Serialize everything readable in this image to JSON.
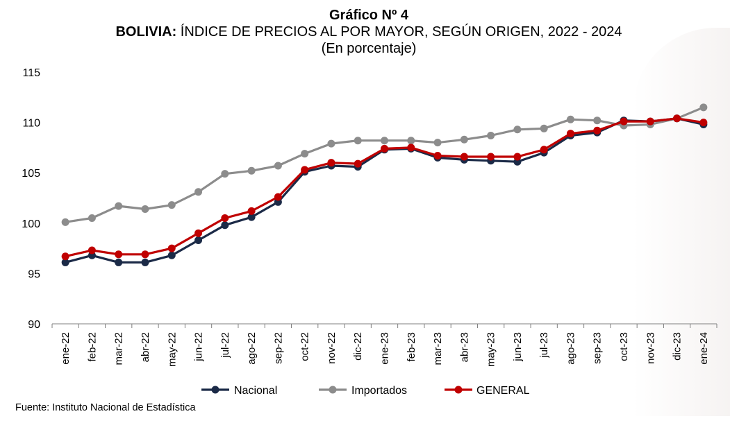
{
  "figure": {
    "number": "Gráfico Nº 4",
    "title_country": "BOLIVIA:",
    "title_rest": " ÍNDICE DE PRECIOS AL POR MAYOR, SEGÚN ORIGEN, 2022 - 2024",
    "subtitle": "(En porcentaje)",
    "source": "Fuente: Instituto Nacional de Estadística"
  },
  "chart_data": {
    "type": "line",
    "title": "BOLIVIA: ÍNDICE DE PRECIOS AL POR MAYOR, SEGÚN ORIGEN, 2022 - 2024",
    "subtitle": "(En porcentaje)",
    "xlabel": "",
    "ylabel": "",
    "ylim": [
      90,
      115
    ],
    "yticks": [
      90,
      95,
      100,
      105,
      110,
      115
    ],
    "grid": false,
    "legend": "bottom",
    "categories": [
      "ene-22",
      "feb-22",
      "mar-22",
      "abr-22",
      "may-22",
      "jun-22",
      "jul-22",
      "ago-22",
      "sep-22",
      "oct-22",
      "nov-22",
      "dic-22",
      "ene-23",
      "feb-23",
      "mar-23",
      "abr-23",
      "may-23",
      "jun-23",
      "jul-23",
      "ago-23",
      "sep-23",
      "oct-23",
      "nov-23",
      "dic-23",
      "ene-24"
    ],
    "series": [
      {
        "name": "Nacional",
        "color": "#1b2a47",
        "values": [
          96.1,
          96.8,
          96.1,
          96.1,
          96.8,
          98.3,
          99.8,
          100.6,
          102.1,
          105.1,
          105.7,
          105.6,
          107.3,
          107.4,
          106.5,
          106.3,
          106.2,
          106.1,
          107.0,
          108.7,
          109.0,
          110.2,
          110.1,
          110.4,
          109.8
        ]
      },
      {
        "name": "Importados",
        "color": "#8c8c8c",
        "values": [
          100.1,
          100.5,
          101.7,
          101.4,
          101.8,
          103.1,
          104.9,
          105.2,
          105.7,
          106.9,
          107.9,
          108.2,
          108.2,
          108.2,
          108.0,
          108.3,
          108.7,
          109.3,
          109.4,
          110.3,
          110.2,
          109.7,
          109.8,
          110.4,
          111.5
        ]
      },
      {
        "name": "GENERAL",
        "color": "#c00000",
        "values": [
          96.7,
          97.3,
          96.9,
          96.9,
          97.5,
          99.0,
          100.5,
          101.2,
          102.6,
          105.3,
          106.0,
          105.9,
          107.4,
          107.5,
          106.7,
          106.6,
          106.6,
          106.6,
          107.3,
          108.9,
          109.2,
          110.1,
          110.1,
          110.4,
          110.0
        ]
      }
    ]
  }
}
